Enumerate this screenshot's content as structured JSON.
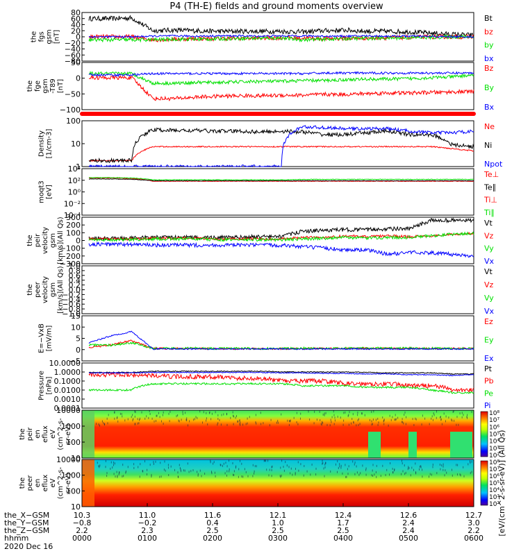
{
  "title": "P4 (TH-E) fields and ground moments overview",
  "colors": {
    "black": "#000000",
    "red": "#ff0000",
    "green": "#00e000",
    "blue": "#0000ff"
  },
  "chart_data": [
    {
      "id": "p1",
      "type": "line",
      "ylabel_lines": [
        "the",
        "fgs",
        "gsm",
        "[nT]"
      ],
      "ylim": [
        -80,
        80
      ],
      "yticks": [
        "80",
        "60",
        "40",
        "20",
        "0",
        "−20",
        "−40",
        "−60",
        "−80"
      ],
      "legend": [
        {
          "name": "Bt",
          "color": "black"
        },
        {
          "name": "bz",
          "color": "red"
        },
        {
          "name": "by",
          "color": "green"
        },
        {
          "name": "bx",
          "color": "blue"
        }
      ],
      "series": [
        {
          "name": "Bt",
          "color": "black",
          "base": [
            60,
            60,
            62,
            20,
            22,
            20,
            18,
            18,
            18,
            18,
            16,
            20,
            22,
            18,
            18,
            16,
            12,
            8,
            5
          ],
          "noise": 8
        },
        {
          "name": "bz",
          "color": "red",
          "base": [
            0,
            0,
            0,
            -10,
            -8,
            -6,
            -6,
            -5,
            -4,
            -3,
            -4,
            -6,
            -5,
            -4,
            -3,
            -2,
            0,
            0,
            0
          ],
          "noise": 7
        },
        {
          "name": "by",
          "color": "green",
          "base": [
            -10,
            -10,
            -10,
            -10,
            -8,
            -8,
            -7,
            -5,
            -5,
            -4,
            -10,
            -8,
            -6,
            -5,
            -4,
            -3,
            -2,
            0,
            0
          ],
          "noise": 6
        },
        {
          "name": "bx",
          "color": "blue",
          "base": [
            0,
            0,
            0,
            2,
            3,
            2,
            3,
            3,
            2,
            3,
            3,
            2,
            2,
            3,
            2,
            2,
            1,
            0,
            0
          ],
          "noise": 3
        }
      ]
    },
    {
      "id": "p2",
      "type": "line",
      "ylabel_lines": [
        "the",
        "fge",
        "gsm",
        "-T89",
        "[nT]"
      ],
      "ylim": [
        -120,
        50
      ],
      "yticks": [
        "50",
        "0",
        "−50",
        "−100"
      ],
      "legend": [
        {
          "name": "Bz",
          "color": "red"
        },
        {
          "name": "By",
          "color": "green"
        },
        {
          "name": "Bx",
          "color": "blue"
        }
      ],
      "series": [
        {
          "name": "Bz",
          "color": "red",
          "base": [
            -5,
            -5,
            -5,
            -80,
            -80,
            -75,
            -72,
            -70,
            -70,
            -68,
            -68,
            -65,
            -65,
            -62,
            -60,
            -60,
            -58,
            -56,
            -55
          ],
          "noise": 7
        },
        {
          "name": "By",
          "color": "green",
          "base": [
            10,
            10,
            10,
            -25,
            -25,
            -22,
            -22,
            -20,
            -18,
            -18,
            -15,
            -15,
            -12,
            -10,
            -10,
            -8,
            -5,
            -2,
            5
          ],
          "noise": 6
        },
        {
          "name": "Bx",
          "color": "blue",
          "base": [
            5,
            5,
            5,
            10,
            10,
            10,
            10,
            10,
            10,
            10,
            10,
            12,
            12,
            12,
            12,
            12,
            12,
            12,
            12
          ],
          "noise": 4
        }
      ]
    },
    {
      "id": "p3",
      "type": "line",
      "ylabel_lines": [
        "Density",
        "[1/cm-3]"
      ],
      "yscale": "log",
      "ylim": [
        1,
        200
      ],
      "yticks": [
        "100",
        "10",
        "1"
      ],
      "legend": [
        {
          "name": "Ne",
          "color": "red"
        },
        {
          "name": "Ni",
          "color": "black"
        },
        {
          "name": "Npot",
          "color": "blue"
        }
      ],
      "series": [
        {
          "name": "Ne",
          "color": "red",
          "base": [
            2,
            2,
            2,
            10,
            10,
            10,
            10,
            10,
            10,
            10,
            10,
            10,
            10,
            10,
            10,
            10,
            10,
            8,
            6
          ],
          "noise": 0.03
        },
        {
          "name": "Ni",
          "color": "black",
          "base": [
            2,
            2,
            2,
            70,
            65,
            65,
            60,
            60,
            55,
            60,
            55,
            40,
            40,
            50,
            60,
            40,
            40,
            12,
            10
          ],
          "noise": 0.1
        },
        {
          "name": "Npot",
          "color": "blue",
          "base": [
            1,
            1,
            1,
            1,
            1,
            1,
            1,
            1,
            1,
            1,
            100,
            90,
            80,
            80,
            80,
            60,
            50,
            50,
            60
          ],
          "noise": 0.08
        }
      ]
    },
    {
      "id": "p4",
      "type": "line",
      "ylabel_lines": [
        "moqt3",
        "[eV]"
      ],
      "yscale": "log",
      "ylim": [
        1e-05,
        100000
      ],
      "yticks": [
        "10⁴",
        "10²",
        "10⁰",
        "10⁻²",
        "10⁻⁴"
      ],
      "legend": [
        {
          "name": "Te⊥",
          "color": "red"
        },
        {
          "name": "Te∥",
          "color": "black"
        },
        {
          "name": "Ti⊥",
          "color": "red"
        },
        {
          "name": "Ti∥",
          "color": "green"
        }
      ],
      "series": [
        {
          "name": "Te⊥",
          "color": "red",
          "base": [
            1000,
            1000,
            800,
            200,
            200,
            200,
            200,
            200,
            200,
            200,
            200,
            200,
            200,
            200,
            200,
            200,
            200,
            200,
            200
          ],
          "noise": 0.05
        },
        {
          "name": "Te∥",
          "color": "black",
          "base": [
            600,
            600,
            500,
            250,
            250,
            250,
            250,
            250,
            250,
            250,
            250,
            250,
            250,
            250,
            250,
            250,
            250,
            250,
            250
          ],
          "noise": 0.05
        },
        {
          "name": "Ti∥",
          "color": "green",
          "base": [
            1200,
            1200,
            1000,
            400,
            400,
            400,
            400,
            400,
            400,
            400,
            500,
            500,
            500,
            500,
            500,
            500,
            500,
            500,
            500
          ],
          "noise": 0.05
        }
      ]
    },
    {
      "id": "p5",
      "type": "line",
      "ylabel_lines": [
        "the",
        "peir",
        "velocity",
        "gsm",
        "[km/s](All Qs)"
      ],
      "ylim": [
        -300,
        300
      ],
      "yticks": [
        "300",
        "200",
        "100",
        "0",
        "−100",
        "−200",
        "−300"
      ],
      "legend": [
        {
          "name": "Vt",
          "color": "black"
        },
        {
          "name": "Vz",
          "color": "red"
        },
        {
          "name": "Vy",
          "color": "green"
        },
        {
          "name": "Vx",
          "color": "blue"
        }
      ],
      "series": [
        {
          "name": "Vt",
          "color": "black",
          "base": [
            30,
            30,
            30,
            40,
            40,
            40,
            40,
            40,
            50,
            50,
            120,
            130,
            140,
            140,
            150,
            150,
            260,
            260,
            260
          ],
          "noise": 25
        },
        {
          "name": "Vz",
          "color": "red",
          "base": [
            20,
            20,
            20,
            30,
            30,
            30,
            20,
            20,
            20,
            20,
            40,
            40,
            60,
            50,
            60,
            50,
            60,
            80,
            90
          ],
          "noise": 15
        },
        {
          "name": "Vy",
          "color": "green",
          "base": [
            10,
            10,
            10,
            20,
            20,
            20,
            10,
            10,
            10,
            10,
            20,
            30,
            40,
            30,
            40,
            40,
            60,
            80,
            90
          ],
          "noise": 20
        },
        {
          "name": "Vx",
          "color": "blue",
          "base": [
            -50,
            -50,
            -50,
            -60,
            -60,
            -60,
            -60,
            -60,
            -60,
            -60,
            -80,
            -100,
            -120,
            -120,
            -180,
            -150,
            -160,
            -180,
            -200
          ],
          "noise": 25
        }
      ]
    },
    {
      "id": "p6",
      "type": "line",
      "ylabel_lines": [
        "the",
        "peer",
        "velocity",
        "gsm",
        "[km/s](All Qs)"
      ],
      "ylim": [
        -1.0,
        1.0
      ],
      "yticks": [
        "1.0",
        "0.8",
        "0.6",
        "0.4",
        "0.2",
        "0.0",
        "−0.2",
        "−0.4",
        "−0.6",
        "−0.8",
        "−1.0"
      ],
      "legend": [
        {
          "name": "Vt",
          "color": "black"
        },
        {
          "name": "Vz",
          "color": "red"
        },
        {
          "name": "Vy",
          "color": "green"
        },
        {
          "name": "Vx",
          "color": "blue"
        }
      ],
      "series": []
    },
    {
      "id": "p7",
      "type": "line",
      "ylabel_lines": [
        "E=−VxB",
        "[mV/m]"
      ],
      "ylim": [
        -5,
        15
      ],
      "yticks": [
        "15",
        "10",
        "5",
        "0",
        "−5"
      ],
      "legend": [
        {
          "name": "Ez",
          "color": "red"
        },
        {
          "name": "Ey",
          "color": "green"
        },
        {
          "name": "Ex",
          "color": "blue"
        }
      ],
      "series": [
        {
          "name": "Ez",
          "color": "red",
          "base": [
            1,
            2,
            4,
            0.5,
            0.5,
            0.5,
            0.4,
            0.4,
            0.4,
            0.4,
            0.5,
            0.5,
            0.5,
            0.5,
            0.5,
            0.5,
            0.5,
            0.5,
            0.5
          ],
          "noise": 0.4
        },
        {
          "name": "Ey",
          "color": "green",
          "base": [
            2,
            2,
            3,
            0.6,
            0.6,
            0.6,
            0.5,
            0.5,
            0.5,
            0.5,
            0.6,
            0.6,
            0.6,
            0.6,
            0.6,
            0.6,
            0.6,
            0.6,
            0.6
          ],
          "noise": 0.5
        },
        {
          "name": "Ex",
          "color": "blue",
          "base": [
            3,
            6,
            8,
            0.3,
            0.3,
            0.3,
            0.3,
            0.3,
            0.3,
            0.3,
            0.3,
            0.3,
            0.3,
            0.3,
            0.3,
            0.3,
            0.3,
            0.3,
            0.3
          ],
          "noise": 0.3
        }
      ]
    },
    {
      "id": "p8",
      "type": "line",
      "ylabel_lines": [
        "Pressure",
        "[nPa]"
      ],
      "yscale": "log",
      "ylim": [
        0.0001,
        10
      ],
      "yticks": [
        "10.0000",
        "1.0000",
        "0.1000",
        "0.0100",
        "0.0010",
        "0.0001"
      ],
      "legend": [
        {
          "name": "Pt",
          "color": "black"
        },
        {
          "name": "Pb",
          "color": "red"
        },
        {
          "name": "Pe",
          "color": "green"
        },
        {
          "name": "Pi",
          "color": "blue"
        }
      ],
      "series": [
        {
          "name": "Pt",
          "color": "black",
          "base": [
            0.9,
            0.9,
            0.9,
            1.2,
            1.2,
            1.2,
            1.2,
            1.2,
            1.2,
            1.0,
            1.0,
            1.0,
            1.0,
            0.9,
            0.8,
            0.8,
            0.8,
            0.6,
            0.6
          ],
          "noise": 0.05
        },
        {
          "name": "Pb",
          "color": "red",
          "base": [
            0.5,
            0.5,
            0.5,
            0.4,
            0.3,
            0.3,
            0.3,
            0.2,
            0.2,
            0.1,
            0.1,
            0.1,
            0.05,
            0.05,
            0.05,
            0.03,
            0.03,
            0.01,
            0.01
          ],
          "noise": 0.25
        },
        {
          "name": "Pe",
          "color": "green",
          "base": [
            0.01,
            0.01,
            0.01,
            0.05,
            0.05,
            0.05,
            0.05,
            0.05,
            0.05,
            0.05,
            0.03,
            0.03,
            0.03,
            0.02,
            0.02,
            0.02,
            0.01,
            0.005,
            0.005
          ],
          "noise": 0.1
        },
        {
          "name": "Pi",
          "color": "blue",
          "base": [
            0.8,
            0.8,
            0.8,
            0.9,
            0.9,
            0.9,
            0.9,
            0.9,
            0.9,
            0.8,
            0.8,
            0.7,
            0.7,
            0.6,
            0.6,
            0.5,
            0.5,
            0.4,
            0.5
          ],
          "noise": 0.05
        }
      ]
    },
    {
      "id": "p9",
      "type": "heatmap",
      "ylabel_lines": [
        "the",
        "peir",
        "en",
        "eflux",
        "eV",
        "(cm^2-s-",
        "sr-eV)"
      ],
      "yscale": "log",
      "ylim": [
        5,
        20000
      ],
      "yticks": [
        "10000",
        "1000",
        "100",
        "10"
      ],
      "colorbar_ticks": [
        "10⁸",
        "10⁷",
        "10⁶",
        "10⁵",
        "10⁴",
        "10³",
        "10²"
      ]
    },
    {
      "id": "p10",
      "type": "heatmap",
      "ylabel_lines": [
        "the",
        "peer",
        "en",
        "eflux",
        "eV",
        "(cm^2-s-",
        "sr-eV)"
      ],
      "yscale": "log",
      "ylim": [
        5,
        20000
      ],
      "yticks": [
        "10000",
        "1000",
        "100",
        "10"
      ],
      "colorbar_ticks": [
        "10⁸",
        "10⁷",
        "10⁶",
        "10⁵",
        "10⁴",
        "10³",
        "10²"
      ]
    }
  ],
  "colorbar_label": "[eV/(cm^2-s-sr-eV)] (All Qs)",
  "xaxis": {
    "row_labels": [
      "the_X−GSM",
      "the_Y−GSM",
      "the_Z−GSM",
      "hhmm",
      "2020 Dec 16"
    ],
    "ticks": [
      {
        "x": "10.3",
        "y": "−0.8",
        "z": "2.2",
        "t": "0000"
      },
      {
        "x": "11.0",
        "y": "−0.2",
        "z": "2.3",
        "t": "0100"
      },
      {
        "x": "11.6",
        "y": "0.4",
        "z": "2.5",
        "t": "0200"
      },
      {
        "x": "12.1",
        "y": "1.0",
        "z": "2.5",
        "t": "0300"
      },
      {
        "x": "12.4",
        "y": "1.7",
        "z": "2.5",
        "t": "0400"
      },
      {
        "x": "12.6",
        "y": "2.4",
        "z": "2.4",
        "t": "0500"
      },
      {
        "x": "12.7",
        "y": "3.0",
        "z": "2.2",
        "t": "0600"
      }
    ]
  }
}
